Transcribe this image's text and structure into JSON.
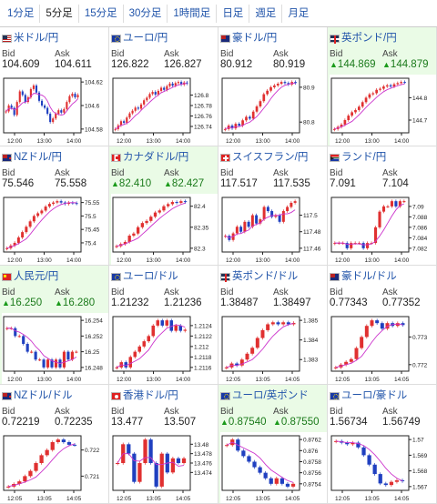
{
  "timeframe_tabs": [
    "1分足",
    "5分足",
    "15分足",
    "30分足",
    "1時間足",
    "日足",
    "週足",
    "月足"
  ],
  "active_tab": "5分足",
  "labels": {
    "bid": "Bid",
    "ask": "Ask"
  },
  "colors": {
    "up": "#e03030",
    "down": "#2040c0",
    "ma": "#cc33cc",
    "highlight": "#eafbe6"
  },
  "pairs": [
    {
      "name": "米ドル/円",
      "flag": "us",
      "bid": "104.609",
      "ask": "104.611",
      "hl": false,
      "up": false,
      "yticks": [
        "104.62",
        "104.6",
        "104.58"
      ],
      "xticks": [
        "12:00",
        "13:00",
        "14:00"
      ],
      "series": [
        104.595,
        104.6,
        104.598,
        104.592,
        104.603,
        104.612,
        104.609,
        104.603,
        104.607,
        104.614,
        104.617,
        104.611,
        104.604,
        104.6,
        104.598,
        104.593,
        104.586,
        104.589,
        104.593,
        104.596,
        104.594,
        104.597,
        104.603,
        104.608,
        104.61,
        104.607,
        104.609
      ]
    },
    {
      "name": "ユーロ/円",
      "flag": "eu",
      "bid": "126.822",
      "ask": "126.827",
      "hl": false,
      "up": false,
      "yticks": [
        "126.8",
        "126.78",
        "126.76",
        "126.74"
      ],
      "xticks": [
        "12:00",
        "13:00",
        "14:00"
      ],
      "series": [
        126.735,
        126.742,
        126.75,
        126.747,
        126.757,
        126.765,
        126.77,
        126.776,
        126.774,
        126.782,
        126.79,
        126.795,
        126.802,
        126.806,
        126.801,
        126.808,
        126.814,
        126.81,
        126.817,
        126.822,
        126.818,
        126.823,
        126.825,
        126.82,
        126.824,
        126.822
      ]
    },
    {
      "name": "豪ドル/円",
      "flag": "au",
      "bid": "80.912",
      "ask": "80.919",
      "hl": false,
      "up": false,
      "yticks": [
        "80.9",
        "80.8"
      ],
      "xticks": [
        "12:00",
        "13:00",
        "14:00"
      ],
      "series": [
        80.78,
        80.79,
        80.782,
        80.795,
        80.79,
        80.805,
        80.815,
        80.81,
        80.83,
        80.845,
        80.86,
        80.88,
        80.89,
        80.9,
        80.905,
        80.91,
        80.915,
        80.912,
        80.908,
        80.915,
        80.912
      ]
    },
    {
      "name": "英ポンド/円",
      "flag": "gb",
      "bid": "144.869",
      "ask": "144.879",
      "hl": true,
      "up": true,
      "yticks": [
        "144.8",
        "144.7"
      ],
      "xticks": [
        "12:00",
        "13:00",
        "14:00"
      ],
      "series": [
        144.66,
        144.67,
        144.68,
        144.7,
        144.72,
        144.735,
        144.745,
        144.76,
        144.78,
        144.8,
        144.815,
        144.82,
        144.835,
        144.84,
        144.85,
        144.855,
        144.85,
        144.86,
        144.865,
        144.87,
        144.869
      ]
    },
    {
      "name": "NZドル/円",
      "flag": "nz",
      "bid": "75.546",
      "ask": "75.558",
      "hl": false,
      "up": false,
      "yticks": [
        "75.55",
        "75.5",
        "75.45",
        "75.4"
      ],
      "xticks": [
        "12:00",
        "13:00",
        "14:00"
      ],
      "series": [
        75.38,
        75.39,
        75.4,
        75.42,
        75.44,
        75.46,
        75.48,
        75.5,
        75.51,
        75.52,
        75.535,
        75.545,
        75.55,
        75.555,
        75.55,
        75.545,
        75.55,
        75.548,
        75.546
      ]
    },
    {
      "name": "カナダドル/円",
      "flag": "ca",
      "bid": "82.410",
      "ask": "82.427",
      "hl": true,
      "up": true,
      "yticks": [
        "82.4",
        "82.35",
        "82.3"
      ],
      "xticks": [
        "12:00",
        "13:00",
        "14:00"
      ],
      "series": [
        82.305,
        82.31,
        82.315,
        82.33,
        82.335,
        82.35,
        82.36,
        82.365,
        82.375,
        82.385,
        82.39,
        82.4,
        82.405,
        82.41,
        82.408,
        82.412,
        82.41
      ]
    },
    {
      "name": "スイスフラン/円",
      "flag": "ch",
      "bid": "117.517",
      "ask": "117.535",
      "hl": false,
      "up": false,
      "yticks": [
        "117.5",
        "117.48",
        "117.46"
      ],
      "xticks": [
        "12:00",
        "13:00",
        "14:00"
      ],
      "series": [
        117.475,
        117.47,
        117.478,
        117.486,
        117.48,
        117.492,
        117.486,
        117.5,
        117.49,
        117.495,
        117.51,
        117.505,
        117.498,
        117.5,
        117.492,
        117.505,
        117.51,
        117.515,
        117.517
      ]
    },
    {
      "name": "ランド/円",
      "flag": "za",
      "bid": "7.091",
      "ask": "7.104",
      "hl": false,
      "up": false,
      "yticks": [
        "7.09",
        "7.088",
        "7.086",
        "7.084",
        "7.082"
      ],
      "xticks": [
        "12:00",
        "13:00",
        "14:00"
      ],
      "series": [
        7.083,
        7.083,
        7.083,
        7.082,
        7.083,
        7.083,
        7.083,
        7.082,
        7.083,
        7.083,
        7.086,
        7.089,
        7.09,
        7.09,
        7.091,
        7.09,
        7.091,
        7.091
      ]
    },
    {
      "name": "人民元/円",
      "flag": "cn",
      "bid": "16.250",
      "ask": "16.280",
      "hl": true,
      "up": true,
      "yticks": [
        "16.254",
        "16.252",
        "16.25",
        "16.248"
      ],
      "xticks": [
        "12:00",
        "13:00",
        "14:00"
      ],
      "series": [
        16.253,
        16.253,
        16.252,
        16.252,
        16.251,
        16.25,
        16.25,
        16.249,
        16.249,
        16.248,
        16.249,
        16.248,
        16.249,
        16.248,
        16.25,
        16.249,
        16.25,
        16.25
      ]
    },
    {
      "name": "ユーロ/ドル",
      "flag": "eu",
      "bid": "1.21232",
      "ask": "1.21236",
      "hl": false,
      "up": false,
      "yticks": [
        "1.2124",
        "1.2122",
        "1.212",
        "1.2118",
        "1.2116"
      ],
      "xticks": [
        "12:00",
        "13:00",
        "14:00"
      ],
      "series": [
        1.2116,
        1.2117,
        1.2116,
        1.2118,
        1.2119,
        1.212,
        1.2121,
        1.2122,
        1.2124,
        1.2125,
        1.2124,
        1.2125,
        1.2123,
        1.2124,
        1.2123,
        1.21232
      ]
    },
    {
      "name": "英ポンド/ドル",
      "flag": "gb",
      "bid": "1.38487",
      "ask": "1.38497",
      "hl": false,
      "up": false,
      "yticks": [
        "1.385",
        "1.384",
        "1.383"
      ],
      "xticks": [
        "12:05",
        "13:05",
        "14:05"
      ],
      "series": [
        1.3826,
        1.3828,
        1.3827,
        1.383,
        1.3833,
        1.3836,
        1.3841,
        1.3845,
        1.3848,
        1.3849,
        1.3848,
        1.3849,
        1.3848,
        1.38487
      ]
    },
    {
      "name": "豪ドル/ドル",
      "flag": "au",
      "bid": "0.77343",
      "ask": "0.77352",
      "hl": false,
      "up": false,
      "yticks": [
        "0.773",
        "0.772"
      ],
      "xticks": [
        "12:05",
        "13:05",
        "14:05"
      ],
      "series": [
        0.7719,
        0.772,
        0.7721,
        0.7722,
        0.7726,
        0.773,
        0.7734,
        0.7736,
        0.7735,
        0.7733,
        0.7735,
        0.7734,
        0.7735,
        0.77343
      ]
    },
    {
      "name": "NZドル/ドル",
      "flag": "nz",
      "bid": "0.72219",
      "ask": "0.72235",
      "hl": false,
      "up": false,
      "yticks": [
        "0.722",
        "0.721"
      ],
      "xticks": [
        "12:05",
        "13:05",
        "14:05"
      ],
      "series": [
        0.7206,
        0.7207,
        0.7208,
        0.721,
        0.7212,
        0.7215,
        0.7218,
        0.722,
        0.7223,
        0.7224,
        0.7223,
        0.7222,
        0.72219
      ]
    },
    {
      "name": "香港ドル/円",
      "flag": "hk",
      "bid": "13.477",
      "ask": "13.507",
      "hl": false,
      "up": false,
      "yticks": [
        "13.48",
        "13.478",
        "13.476",
        "13.474"
      ],
      "xticks": [
        "12:05",
        "13:05",
        "14:05"
      ],
      "series": [
        13.476,
        13.48,
        13.478,
        13.472,
        13.476,
        13.481,
        13.476,
        13.471,
        13.478,
        13.474,
        13.477,
        13.476,
        13.477
      ]
    },
    {
      "name": "ユーロ/英ポンド",
      "flag": "eu",
      "bid": "0.87540",
      "ask": "0.87550",
      "hl": true,
      "up": true,
      "yticks": [
        "0.8762",
        "0.876",
        "0.8758",
        "0.8756",
        "0.8754"
      ],
      "xticks": [
        "12:05",
        "13:05",
        "14:05"
      ],
      "series": [
        0.8761,
        0.8762,
        0.876,
        0.8759,
        0.8758,
        0.8757,
        0.8756,
        0.8755,
        0.8754,
        0.8755,
        0.8754,
        0.87535,
        0.8754
      ]
    },
    {
      "name": "ユーロ/豪ドル",
      "flag": "eu",
      "bid": "1.56734",
      "ask": "1.56749",
      "hl": false,
      "up": false,
      "yticks": [
        "1.57",
        "1.569",
        "1.568",
        "1.567"
      ],
      "xticks": [
        "12:05",
        "13:05",
        "14:05"
      ],
      "series": [
        1.5699,
        1.5698,
        1.5697,
        1.5698,
        1.5695,
        1.569,
        1.5684,
        1.5678,
        1.5672,
        1.5671,
        1.5673,
        1.5674,
        1.56734
      ]
    }
  ]
}
